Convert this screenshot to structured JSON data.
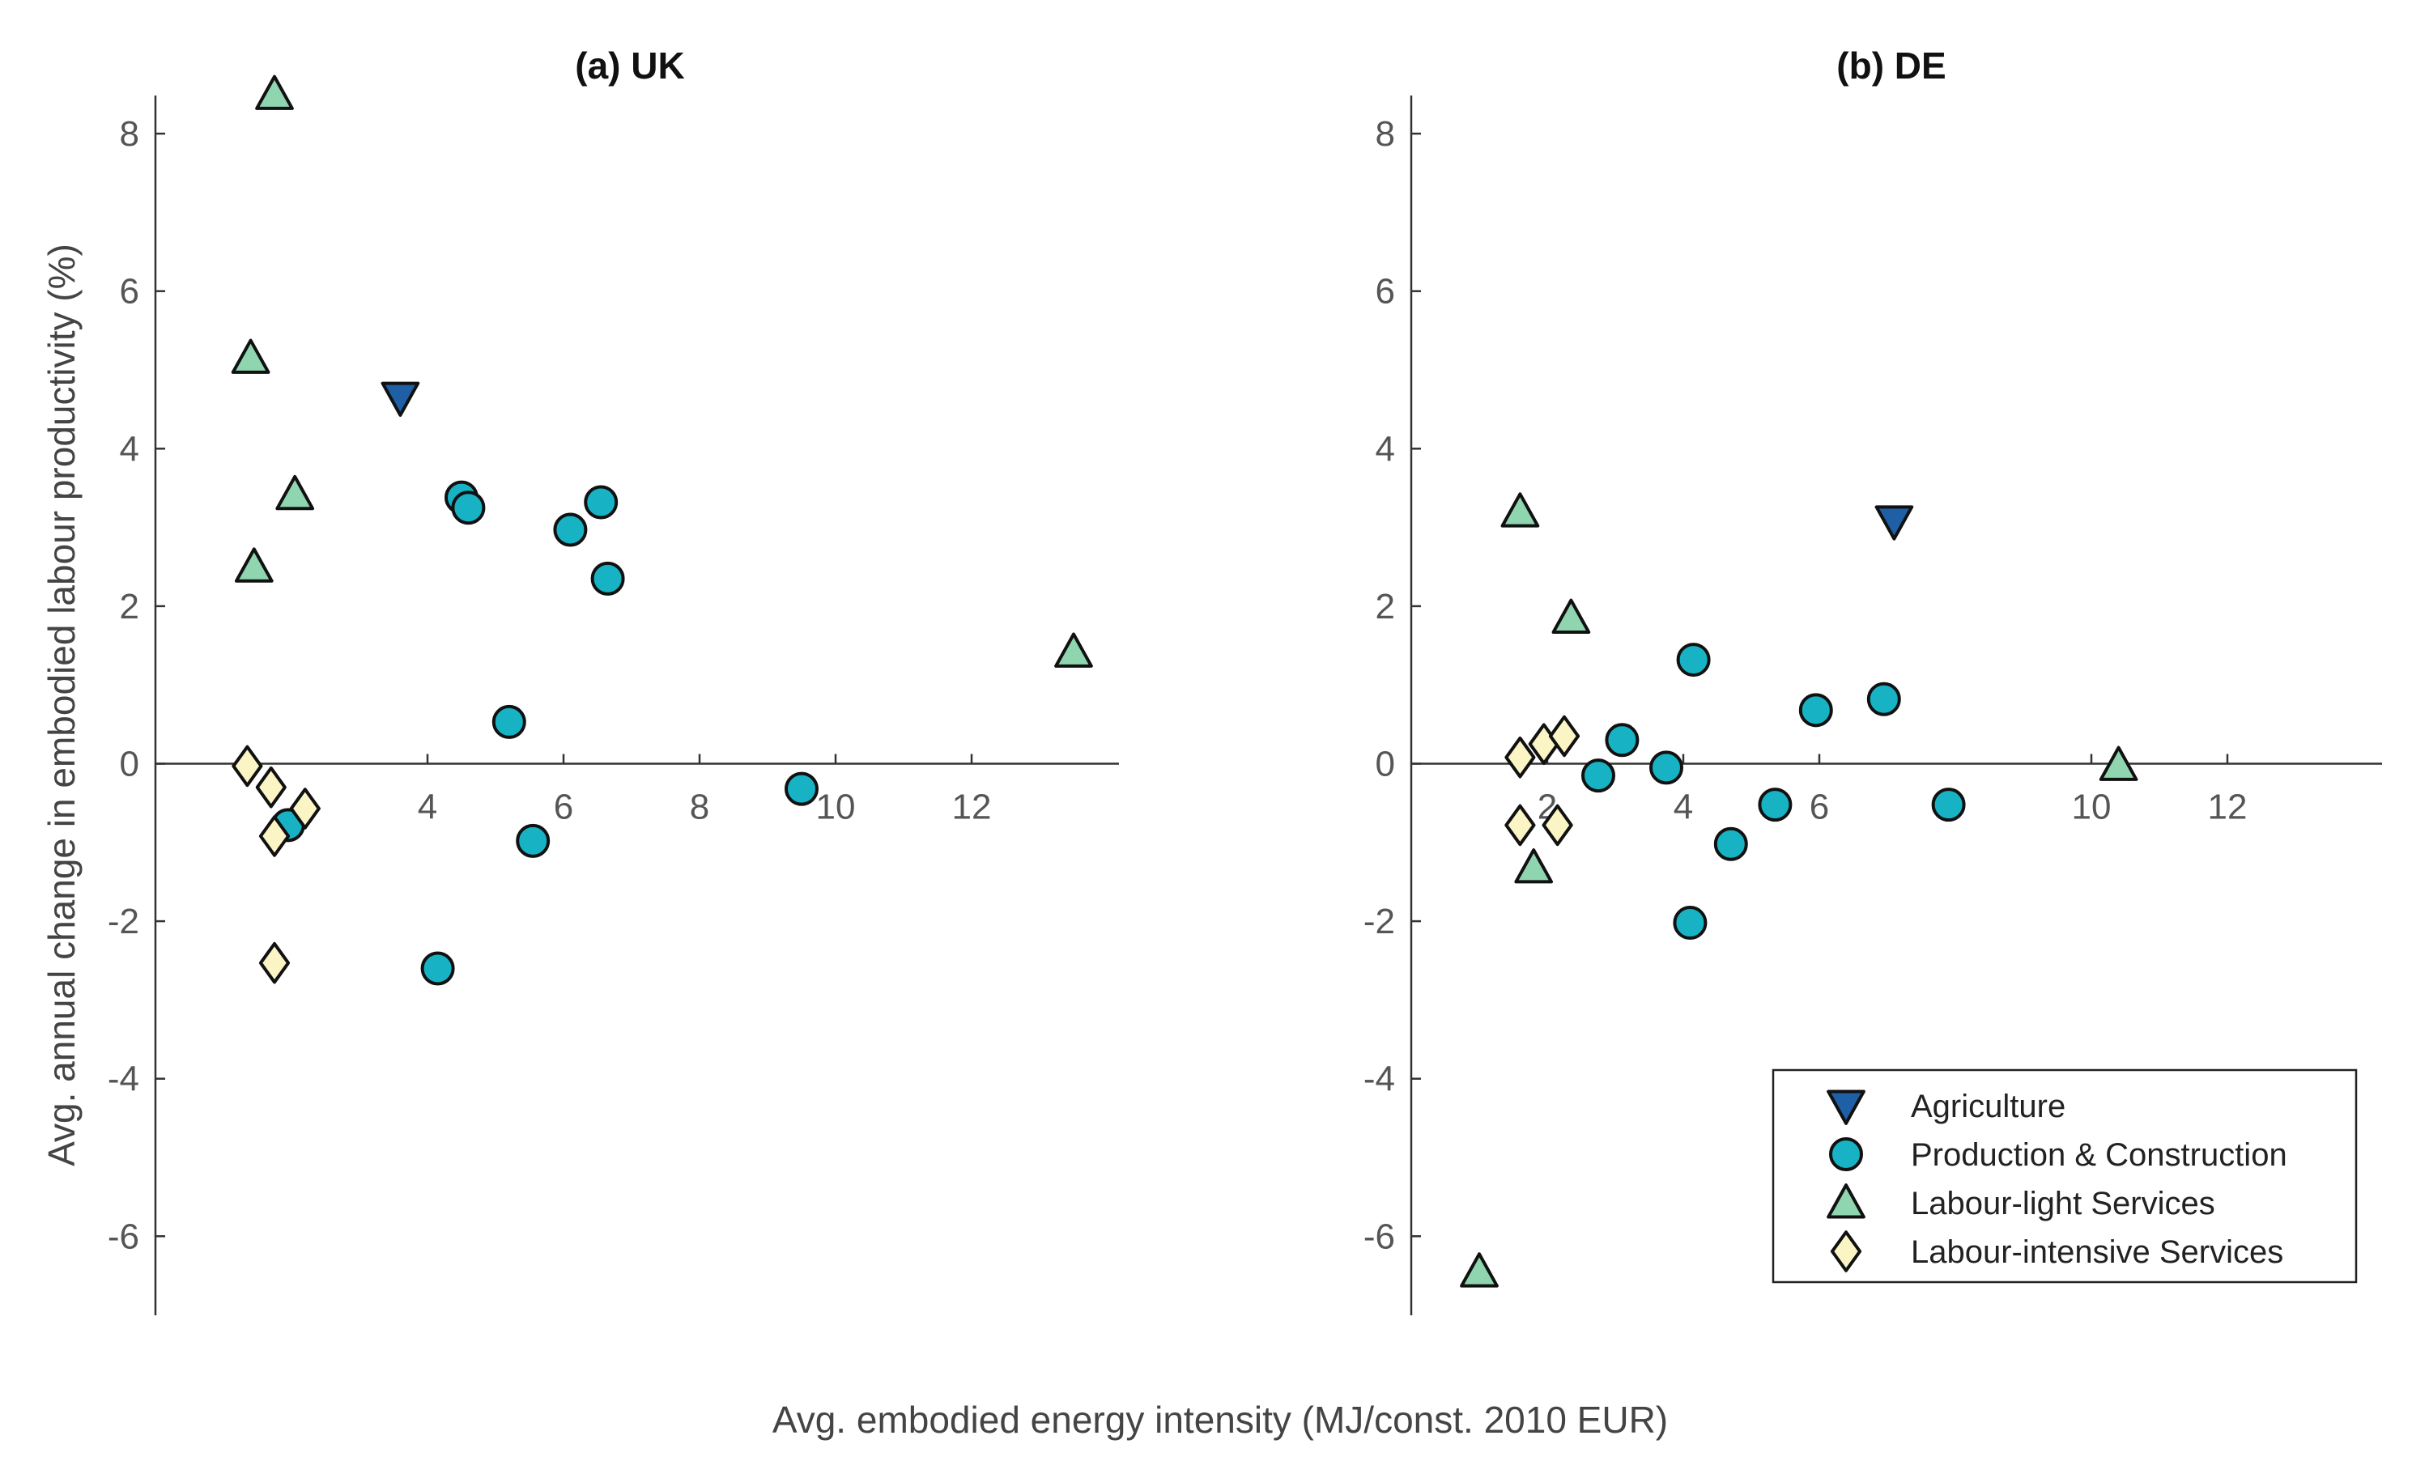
{
  "chart_data": [
    {
      "type": "scatter",
      "title": "(a) UK",
      "xlabel": "Avg. embodied energy intensity (MJ/const. 2010 EUR)",
      "ylabel": "Avg. annual change in embodied labour productivity (%)",
      "xlim": [
        0,
        14
      ],
      "ylim": [
        -7,
        8.5
      ],
      "xticks": [
        4,
        6,
        8,
        10,
        12
      ],
      "yticks": [
        8,
        6,
        4,
        2,
        0,
        -2,
        -4,
        -6
      ],
      "grid": false,
      "series": [
        {
          "name": "Agriculture",
          "marker": "triangle-down",
          "color": "#1f5fa6",
          "points": [
            [
              3.6,
              4.65
            ]
          ]
        },
        {
          "name": "Production & Construction",
          "marker": "circle",
          "color": "#17b3c4",
          "points": [
            [
              4.5,
              3.38
            ],
            [
              4.6,
              3.25
            ],
            [
              6.1,
              2.97
            ],
            [
              6.55,
              3.32
            ],
            [
              6.65,
              2.35
            ],
            [
              5.2,
              0.53
            ],
            [
              9.5,
              -0.32
            ],
            [
              5.55,
              -0.98
            ],
            [
              4.15,
              -2.6
            ],
            [
              1.95,
              -0.78
            ]
          ]
        },
        {
          "name": "Labour-light Services",
          "marker": "triangle-up",
          "color": "#8fd6b0",
          "points": [
            [
              1.75,
              8.5
            ],
            [
              1.4,
              5.15
            ],
            [
              2.05,
              3.42
            ],
            [
              1.45,
              2.5
            ],
            [
              13.5,
              1.42
            ]
          ]
        },
        {
          "name": "Labour-intensive Services",
          "marker": "diamond",
          "color": "#fbf5c6",
          "points": [
            [
              1.35,
              -0.03
            ],
            [
              1.7,
              -0.3
            ],
            [
              2.2,
              -0.57
            ],
            [
              1.75,
              -0.92
            ],
            [
              1.75,
              -2.53
            ]
          ]
        }
      ]
    },
    {
      "type": "scatter",
      "title": "(b) DE",
      "xlim": [
        0,
        14
      ],
      "ylim": [
        -7,
        8.5
      ],
      "xticks": [
        2,
        4,
        6,
        10,
        12
      ],
      "yticks": [
        8,
        6,
        4,
        2,
        0,
        -2,
        -4,
        -6
      ],
      "grid": false,
      "legend": "bottom-right",
      "series": [
        {
          "name": "Agriculture",
          "marker": "triangle-down",
          "color": "#1f5fa6",
          "points": [
            [
              7.1,
              3.08
            ]
          ]
        },
        {
          "name": "Production & Construction",
          "marker": "circle",
          "color": "#17b3c4",
          "points": [
            [
              4.15,
              1.32
            ],
            [
              5.95,
              0.68
            ],
            [
              6.95,
              0.82
            ],
            [
              3.1,
              0.3
            ],
            [
              2.75,
              -0.15
            ],
            [
              3.75,
              -0.05
            ],
            [
              5.35,
              -0.52
            ],
            [
              7.9,
              -0.52
            ],
            [
              4.7,
              -1.02
            ],
            [
              4.1,
              -2.02
            ]
          ]
        },
        {
          "name": "Labour-light Services",
          "marker": "triangle-up",
          "color": "#8fd6b0",
          "points": [
            [
              1.6,
              3.2
            ],
            [
              2.35,
              1.85
            ],
            [
              10.4,
              -0.02
            ],
            [
              1.8,
              -1.32
            ],
            [
              1.0,
              -6.45
            ]
          ]
        },
        {
          "name": "Labour-intensive Services",
          "marker": "diamond",
          "color": "#fbf5c6",
          "points": [
            [
              1.6,
              0.08
            ],
            [
              1.95,
              0.25
            ],
            [
              2.25,
              0.35
            ],
            [
              1.6,
              -0.78
            ],
            [
              2.15,
              -0.78
            ]
          ]
        }
      ]
    }
  ]
}
